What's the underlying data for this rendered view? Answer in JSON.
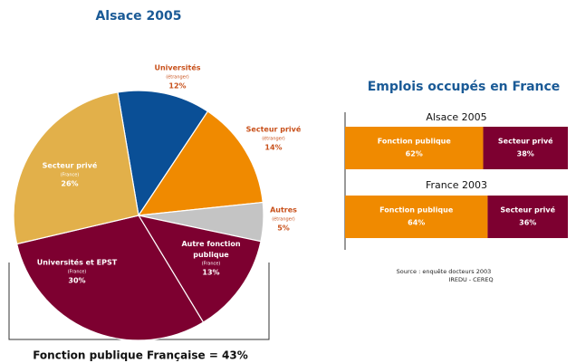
{
  "chart_data": [
    {
      "type": "pie",
      "title": "Alsace 2005",
      "categories": [
        "Universités",
        "Secteur privé",
        "Autres",
        "Autre fonction publique",
        "Universités et EPST",
        "Secteur privé"
      ],
      "sublabels": [
        "(étranger)",
        "(étranger)",
        "(étranger)",
        "(France)",
        "(France)",
        "(France)"
      ],
      "values": [
        12,
        14,
        5,
        13,
        30,
        26
      ],
      "value_labels": [
        "12%",
        "14%",
        "5%",
        "13%",
        "30%",
        "26%"
      ],
      "colors": [
        "#0a4f96",
        "#f08a00",
        "#c4c4c4",
        "#7d0030",
        "#7d0030",
        "#e2b04a"
      ],
      "annotation": "Fonction publique Française = 43%"
    },
    {
      "type": "bar",
      "orientation": "horizontal",
      "stacked": true,
      "title": "Emplois occupés en France",
      "categories": [
        "Alsace 2005",
        "France 2003"
      ],
      "series": [
        {
          "name": "Fonction publique",
          "color": "#f08a00",
          "values": [
            62,
            64
          ],
          "value_labels": [
            "62%",
            "64%"
          ]
        },
        {
          "name": "Secteur privé",
          "color": "#7d0030",
          "values": [
            38,
            36
          ],
          "value_labels": [
            "38%",
            "36%"
          ]
        }
      ],
      "xlim": [
        0,
        100
      ],
      "notes": [
        "Source : enquête docteurs 2003",
        "IREDU - CEREQ"
      ]
    }
  ]
}
